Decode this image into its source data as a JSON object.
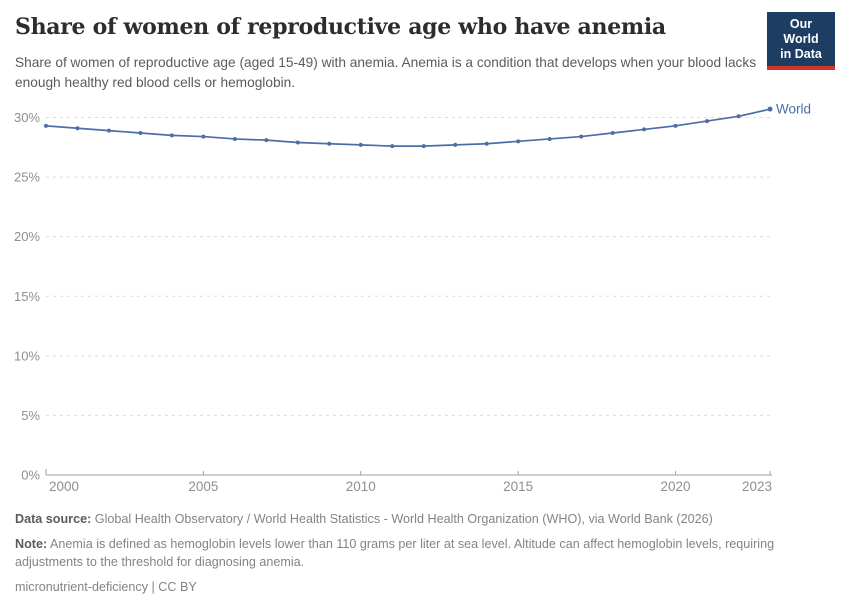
{
  "header": {
    "title": "Share of women of reproductive age who have anemia",
    "subtitle": "Share of women of reproductive age (aged 15-49) with anemia. Anemia is a condition that develops when your blood lacks enough healthy red blood cells or hemoglobin.",
    "logo": {
      "line1": "Our World",
      "line2": "in Data"
    }
  },
  "chart_data": {
    "type": "line",
    "title": "Share of women of reproductive age who have anemia",
    "x": [
      2000,
      2001,
      2002,
      2003,
      2004,
      2005,
      2006,
      2007,
      2008,
      2009,
      2010,
      2011,
      2012,
      2013,
      2014,
      2015,
      2016,
      2017,
      2018,
      2019,
      2020,
      2021,
      2022,
      2023
    ],
    "series": [
      {
        "name": "World",
        "color": "#4d6da6",
        "values": [
          29.3,
          29.1,
          28.9,
          28.7,
          28.5,
          28.4,
          28.2,
          28.1,
          27.9,
          27.8,
          27.7,
          27.6,
          27.6,
          27.7,
          27.8,
          28.0,
          28.2,
          28.4,
          28.7,
          29.0,
          29.3,
          29.7,
          30.1,
          30.7
        ]
      }
    ],
    "ylim": [
      0,
      30
    ],
    "yticks": [
      0,
      5,
      10,
      15,
      20,
      25,
      30
    ],
    "ytick_suffix": "%",
    "xticks": [
      2000,
      2005,
      2010,
      2015,
      2020,
      2023
    ],
    "grid": true,
    "legend_position": "end-of-line-label",
    "xlabel": "",
    "ylabel": ""
  },
  "footer": {
    "source_label": "Data source:",
    "source_text": "Global Health Observatory / World Health Statistics - World Health Organization (WHO), via World Bank (2026)",
    "note_label": "Note:",
    "note_text": "Anemia is defined as hemoglobin levels lower than 110 grams per liter at sea level. Altitude can affect hemoglobin levels, requiring adjustments to the threshold for diagnosing anemia.",
    "license": "micronutrient-deficiency | CC BY"
  },
  "colors": {
    "line": "#4d6da6",
    "grid": "#dcdcdc",
    "axis": "#a1a1a1",
    "tick_label": "#8f8f8f",
    "title": "#2d2d2d",
    "subtitle": "#5b5b5b",
    "footer": "#848484",
    "logo_bg": "#1d3d63",
    "logo_bar": "#d0352a"
  }
}
